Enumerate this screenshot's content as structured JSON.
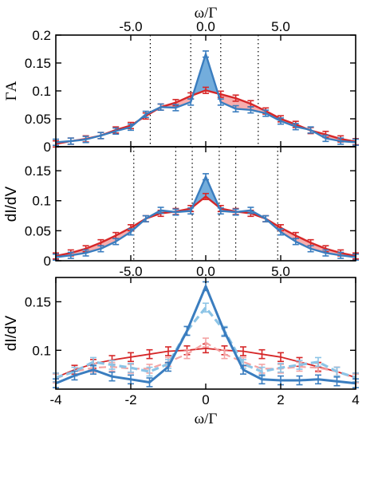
{
  "colors": {
    "red": "#d62728",
    "pink": "#f4a3a3",
    "blue": "#3a7dbf",
    "lightblue": "#8cc4e6",
    "fill_red": "#f4a0a0",
    "fill_blue": "#5b9fd6"
  },
  "chart_data": [
    {
      "type": "line",
      "panel": "top",
      "title": "",
      "xlabel": "ω/Γ",
      "ylabel": "ΓA",
      "xlim": [
        -10,
        10
      ],
      "ylim": [
        0,
        0.2
      ],
      "x_ticks": [
        -5.0,
        0.0,
        5.0
      ],
      "x_ticklabels": [
        "-5.0",
        "0.0",
        "5.0"
      ],
      "y_ticks": [
        0,
        0.05,
        0.1,
        0.15,
        0.2
      ],
      "y_ticklabels": [
        "0",
        "0.05",
        "0.1",
        "0.15",
        "0.2"
      ],
      "vlines": [
        -3.7,
        -1.0,
        1.0,
        3.5
      ],
      "x": [
        -10,
        -9,
        -8,
        -7,
        -6,
        -5,
        -4,
        -3,
        -2,
        -1,
        0,
        1,
        2,
        3,
        4,
        5,
        6,
        7,
        8,
        9,
        10
      ],
      "series": [
        {
          "color": "red",
          "values": [
            0.005,
            0.01,
            0.014,
            0.02,
            0.03,
            0.038,
            0.055,
            0.071,
            0.079,
            0.091,
            0.101,
            0.094,
            0.087,
            0.077,
            0.064,
            0.05,
            0.04,
            0.029,
            0.022,
            0.014,
            0.009
          ]
        },
        {
          "color": "blue",
          "values": [
            0.008,
            0.01,
            0.013,
            0.02,
            0.028,
            0.035,
            0.058,
            0.071,
            0.07,
            0.08,
            0.166,
            0.08,
            0.068,
            0.066,
            0.06,
            0.046,
            0.036,
            0.03,
            0.015,
            0.01,
            0.008
          ]
        }
      ]
    },
    {
      "type": "line",
      "panel": "middle",
      "title": "",
      "xlabel": "",
      "ylabel": "dI/dV",
      "xlim": [
        -10,
        10
      ],
      "ylim": [
        0,
        0.19
      ],
      "x_ticks": [
        -5.0,
        0.0,
        5.0
      ],
      "x_ticklabels": [
        "-5.0",
        "0.0",
        "5.0"
      ],
      "y_ticks": [
        0,
        0.05,
        0.1,
        0.15
      ],
      "y_ticklabels": [
        "0",
        "0.05",
        "0.1",
        "0.15"
      ],
      "vlines": [
        -4.8,
        -2.0,
        -0.9,
        0.9,
        2.0,
        4.8
      ],
      "x": [
        -10,
        -9,
        -8,
        -7,
        -6,
        -5,
        -4,
        -3,
        -2,
        -1,
        0,
        1,
        2,
        3,
        4,
        5,
        6,
        7,
        8,
        9,
        10
      ],
      "series": [
        {
          "color": "red",
          "values": [
            0.008,
            0.013,
            0.02,
            0.03,
            0.042,
            0.055,
            0.07,
            0.079,
            0.082,
            0.087,
            0.107,
            0.087,
            0.082,
            0.079,
            0.07,
            0.055,
            0.042,
            0.03,
            0.02,
            0.013,
            0.008
          ]
        },
        {
          "color": "blue",
          "values": [
            0.006,
            0.009,
            0.013,
            0.02,
            0.032,
            0.048,
            0.07,
            0.084,
            0.081,
            0.083,
            0.14,
            0.083,
            0.081,
            0.084,
            0.07,
            0.048,
            0.032,
            0.02,
            0.013,
            0.009,
            0.006
          ]
        }
      ]
    },
    {
      "type": "line",
      "panel": "bottom",
      "title": "",
      "xlabel": "ω/Γ",
      "ylabel": "dI/dV",
      "xlim": [
        -4,
        4
      ],
      "ylim": [
        0.06,
        0.175
      ],
      "x_ticks": [
        -4,
        -2,
        0,
        2,
        4
      ],
      "x_ticklabels": [
        "-4",
        "-2",
        "0",
        "2",
        "4"
      ],
      "y_ticks": [
        0.1,
        0.15
      ],
      "y_ticklabels": [
        "0.1",
        "0.15"
      ],
      "x": [
        -4,
        -3.5,
        -3,
        -2.5,
        -2,
        -1.5,
        -1,
        -0.5,
        0,
        0.5,
        1,
        1.5,
        2,
        2.5,
        3,
        3.5,
        4
      ],
      "series": [
        {
          "color": "red",
          "style": "solid",
          "width": 1.8,
          "values": [
            0.072,
            0.08,
            0.086,
            0.09,
            0.093,
            0.096,
            0.099,
            0.1,
            0.102,
            0.1,
            0.099,
            0.096,
            0.093,
            0.088,
            0.083,
            0.078,
            0.072
          ]
        },
        {
          "color": "pink",
          "style": "dashed",
          "width": 2.2,
          "values": [
            0.071,
            0.078,
            0.082,
            0.083,
            0.081,
            0.081,
            0.088,
            0.096,
            0.108,
            0.096,
            0.088,
            0.081,
            0.081,
            0.083,
            0.082,
            0.078,
            0.071
          ]
        },
        {
          "color": "lightblue",
          "style": "dashed",
          "width": 3.2,
          "values": [
            0.072,
            0.078,
            0.088,
            0.085,
            0.082,
            0.078,
            0.086,
            0.12,
            0.144,
            0.12,
            0.086,
            0.078,
            0.082,
            0.085,
            0.088,
            0.078,
            0.072
          ]
        },
        {
          "color": "blue",
          "style": "solid",
          "width": 3.0,
          "values": [
            0.066,
            0.074,
            0.08,
            0.073,
            0.07,
            0.067,
            0.083,
            0.12,
            0.166,
            0.119,
            0.08,
            0.07,
            0.069,
            0.069,
            0.07,
            0.068,
            0.066
          ]
        }
      ]
    }
  ]
}
